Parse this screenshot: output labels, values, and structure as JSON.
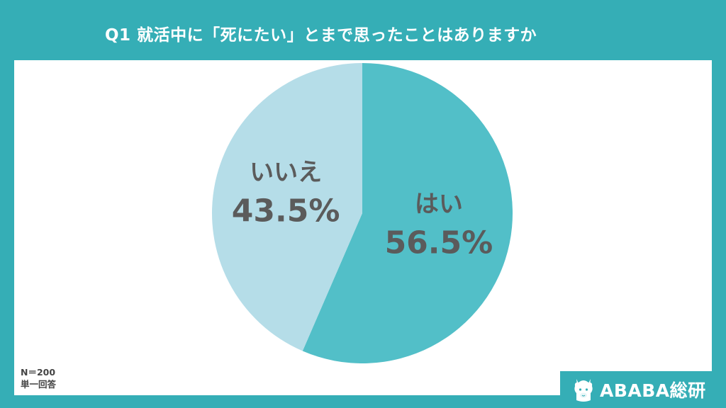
{
  "header": {
    "title": "Q1 就活中に「死にたい」とまで思ったことはありますか"
  },
  "chart_data": {
    "type": "pie",
    "title": "Q1 就活中に「死にたい」とまで思ったことはありますか",
    "slices": [
      {
        "label": "はい",
        "value": 56.5,
        "value_text": "56.5%",
        "color": "#52bfc8"
      },
      {
        "label": "いいえ",
        "value": 43.5,
        "value_text": "43.5%",
        "color": "#b5dde8"
      }
    ],
    "start_angle": "12 o'clock",
    "direction": "clockwise",
    "legend": "none"
  },
  "notes": {
    "sample": "N＝200",
    "answer_type": "単一回答"
  },
  "brand": {
    "name": "ABABA総研",
    "logo_icon": "alpaca-logo-icon"
  },
  "colors": {
    "frame": "#35aeb6",
    "label_text": "#5b5b5b"
  }
}
